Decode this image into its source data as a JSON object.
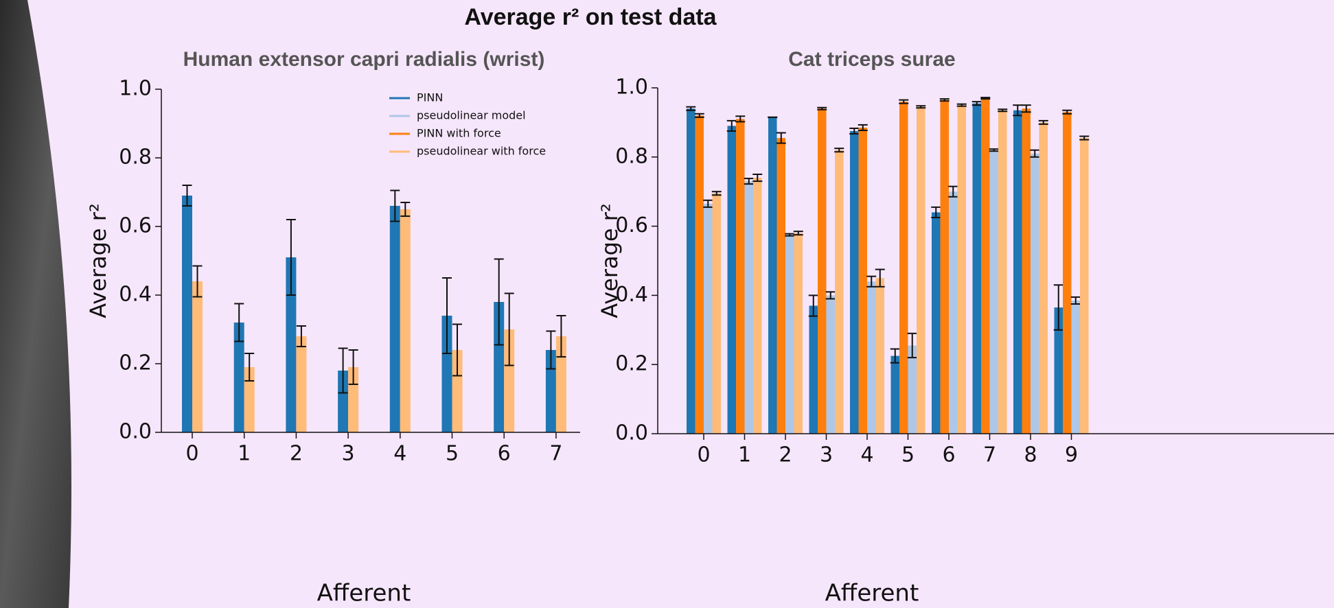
{
  "title": "Average r² on test data",
  "chart_data": [
    {
      "type": "bar",
      "title": "Human extensor capri radialis (wrist)",
      "xlabel": "Afferent",
      "ylabel": "Average r²",
      "categories": [
        "0",
        "1",
        "2",
        "3",
        "4",
        "5",
        "6",
        "7"
      ],
      "ylim": [
        0,
        1.0
      ],
      "yticks": [
        {
          "value": 0,
          "label": "0.0"
        },
        0.2,
        0.4,
        0.6,
        0.8,
        {
          "value": 1.0,
          "label": "1.0"
        }
      ],
      "legend": "upper right",
      "series": [
        {
          "name": "PINN",
          "color": "#1f77b4",
          "values": [
            0.69,
            0.32,
            0.51,
            0.18,
            0.66,
            0.34,
            0.38,
            0.24
          ],
          "errors": [
            0.03,
            0.055,
            0.11,
            0.065,
            0.045,
            0.11,
            0.125,
            0.055
          ]
        },
        {
          "name": "pseudolinear model",
          "color": "#aec7e8",
          "values": [
            null,
            null,
            null,
            null,
            null,
            null,
            null,
            null
          ],
          "errors": [
            null,
            null,
            null,
            null,
            null,
            null,
            null,
            null
          ]
        },
        {
          "name": "PINN with force",
          "color": "#ff7f0e",
          "values": [
            null,
            null,
            null,
            null,
            null,
            null,
            null,
            null
          ],
          "errors": [
            null,
            null,
            null,
            null,
            null,
            null,
            null,
            null
          ]
        },
        {
          "name": "pseudolinear with force",
          "color": "#ffbb78",
          "values": [
            0.44,
            0.19,
            0.28,
            0.19,
            0.65,
            0.24,
            0.3,
            0.28
          ],
          "errors": [
            0.045,
            0.04,
            0.03,
            0.05,
            0.02,
            0.075,
            0.105,
            0.06
          ]
        }
      ]
    },
    {
      "type": "bar",
      "title": "Cat triceps surae",
      "xlabel": "Afferent",
      "ylabel": "Average r²",
      "categories": [
        "0",
        "1",
        "2",
        "3",
        "4",
        "5",
        "6",
        "7",
        "8",
        "9"
      ],
      "ylim": [
        0,
        1.0
      ],
      "yticks": [
        {
          "value": 0,
          "label": "0.0"
        },
        0.2,
        0.4,
        0.6,
        0.8,
        {
          "value": 1.0,
          "label": "1.0"
        }
      ],
      "series": [
        {
          "name": "PINN",
          "color": "#1f77b4",
          "values": [
            0.94,
            0.89,
            0.915,
            0.37,
            0.875,
            0.225,
            0.64,
            0.955,
            0.935,
            0.365
          ],
          "errors": [
            0.005,
            0.015,
            0,
            0.03,
            0.008,
            0.02,
            0.015,
            0.005,
            0.015,
            0.065
          ]
        },
        {
          "name": "PINN with force",
          "color": "#ff7f0e",
          "values": [
            0.92,
            0.91,
            0.855,
            0.94,
            0.885,
            0.96,
            0.965,
            0.97,
            0.94,
            0.93
          ],
          "errors": [
            0.005,
            0.008,
            0.015,
            0.003,
            0.008,
            0.005,
            0.003,
            0.002,
            0.01,
            0.005
          ]
        },
        {
          "name": "pseudolinear model",
          "color": "#aec7e8",
          "values": [
            0.665,
            0.73,
            0.575,
            0.4,
            0.44,
            0.255,
            0.7,
            0.82,
            0.81,
            0.385
          ],
          "errors": [
            0.01,
            0.008,
            0.003,
            0.01,
            0.015,
            0.035,
            0.015,
            0.003,
            0.01,
            0.01
          ]
        },
        {
          "name": "pseudolinear with force",
          "color": "#ffbb78",
          "values": [
            0.695,
            0.74,
            0.58,
            0.82,
            0.45,
            0.945,
            0.95,
            0.935,
            0.9,
            0.855
          ],
          "errors": [
            0.005,
            0.01,
            0.005,
            0.005,
            0.025,
            0.003,
            0.003,
            0.003,
            0.005,
            0.005
          ]
        }
      ]
    }
  ]
}
